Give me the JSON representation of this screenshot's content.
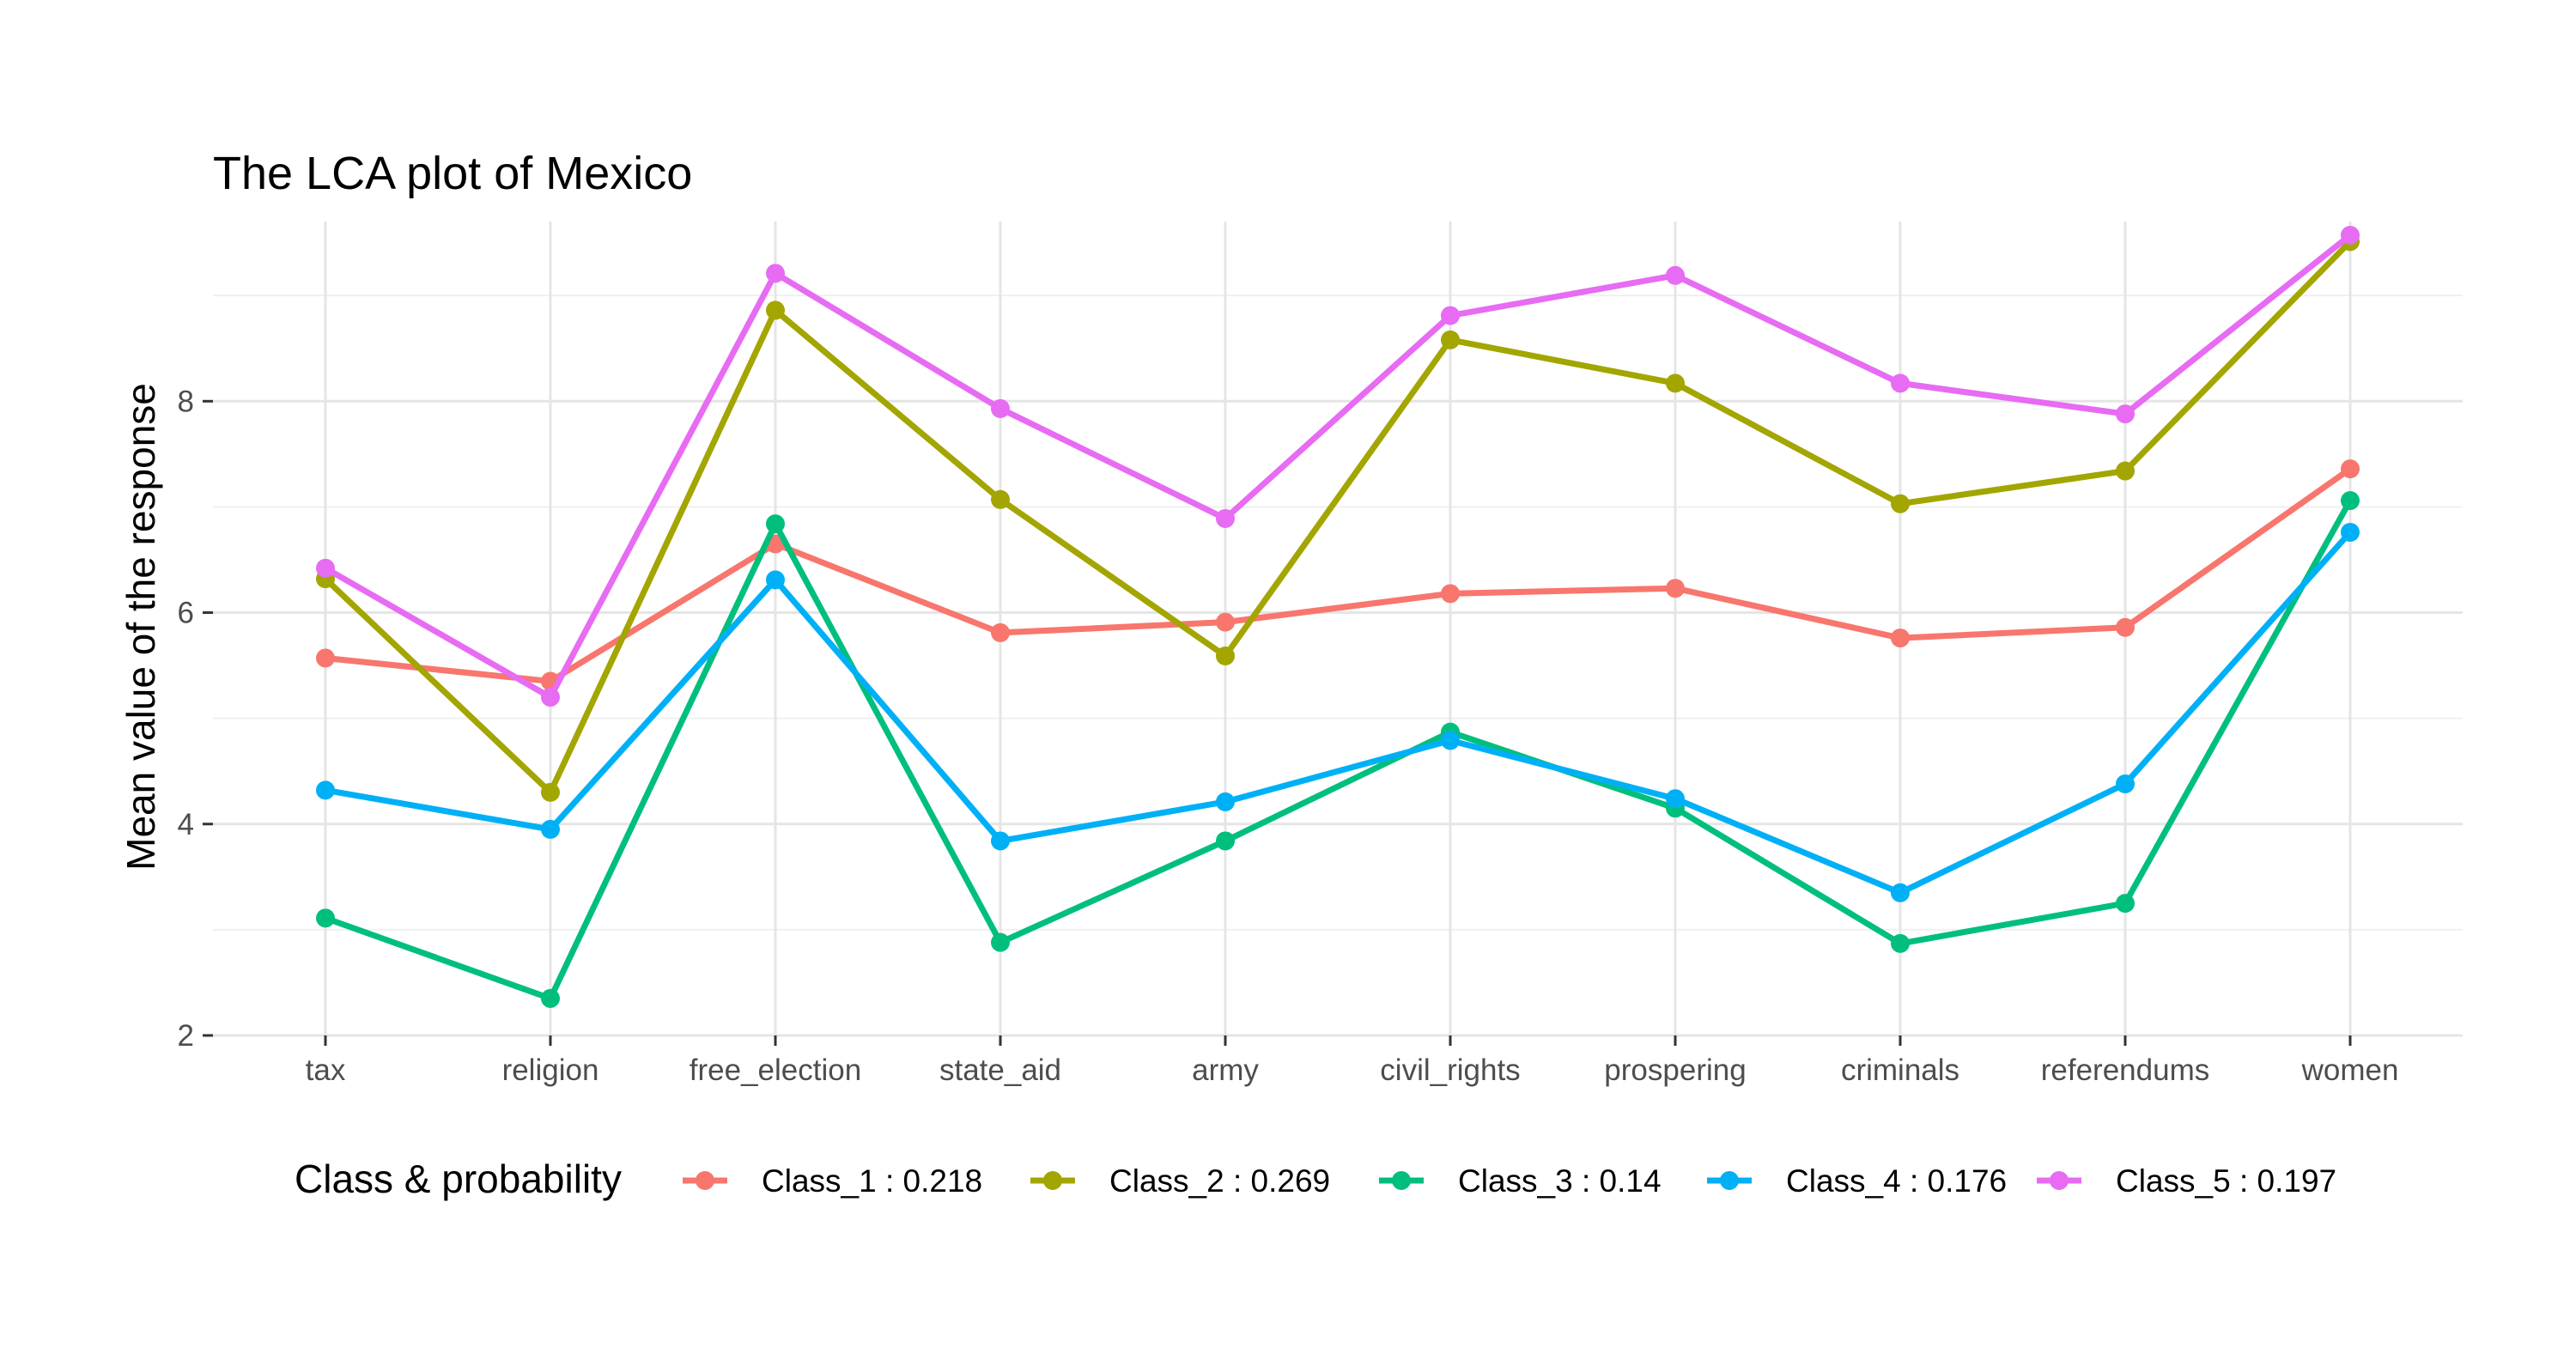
{
  "chart_data": {
    "type": "line",
    "title": "The LCA plot of Mexico",
    "xlabel": "",
    "ylabel": "Mean value of the response",
    "categories": [
      "tax",
      "religion",
      "free_election",
      "state_aid",
      "army",
      "civil_rights",
      "prospering",
      "criminals",
      "referendums",
      "women"
    ],
    "ylim": [
      2,
      9.7
    ],
    "yticks": [
      2,
      4,
      6,
      8
    ],
    "grid": true,
    "legend": {
      "title": "Class & probability",
      "placement": "bottom"
    },
    "series": [
      {
        "name": "Class_1 : 0.218",
        "color": "#F8766D",
        "values": [
          5.57,
          5.35,
          6.65,
          5.81,
          5.91,
          6.18,
          6.23,
          5.76,
          5.86,
          7.36
        ]
      },
      {
        "name": "Class_2 : 0.269",
        "color": "#A3A500",
        "values": [
          6.32,
          4.3,
          8.86,
          7.07,
          5.59,
          8.58,
          8.17,
          7.03,
          7.34,
          9.51
        ]
      },
      {
        "name": "Class_3 : 0.14",
        "color": "#00BF7D",
        "values": [
          3.11,
          2.35,
          6.84,
          2.88,
          3.84,
          4.87,
          4.15,
          2.87,
          3.25,
          7.06
        ]
      },
      {
        "name": "Class_4 : 0.176",
        "color": "#00B0F6",
        "values": [
          4.32,
          3.95,
          6.31,
          3.84,
          4.21,
          4.79,
          4.24,
          3.35,
          4.38,
          6.76
        ]
      },
      {
        "name": "Class_5 : 0.197",
        "color": "#E76BF3",
        "values": [
          6.42,
          5.2,
          9.21,
          7.93,
          6.89,
          8.81,
          9.19,
          8.17,
          7.88,
          9.57
        ]
      }
    ]
  }
}
